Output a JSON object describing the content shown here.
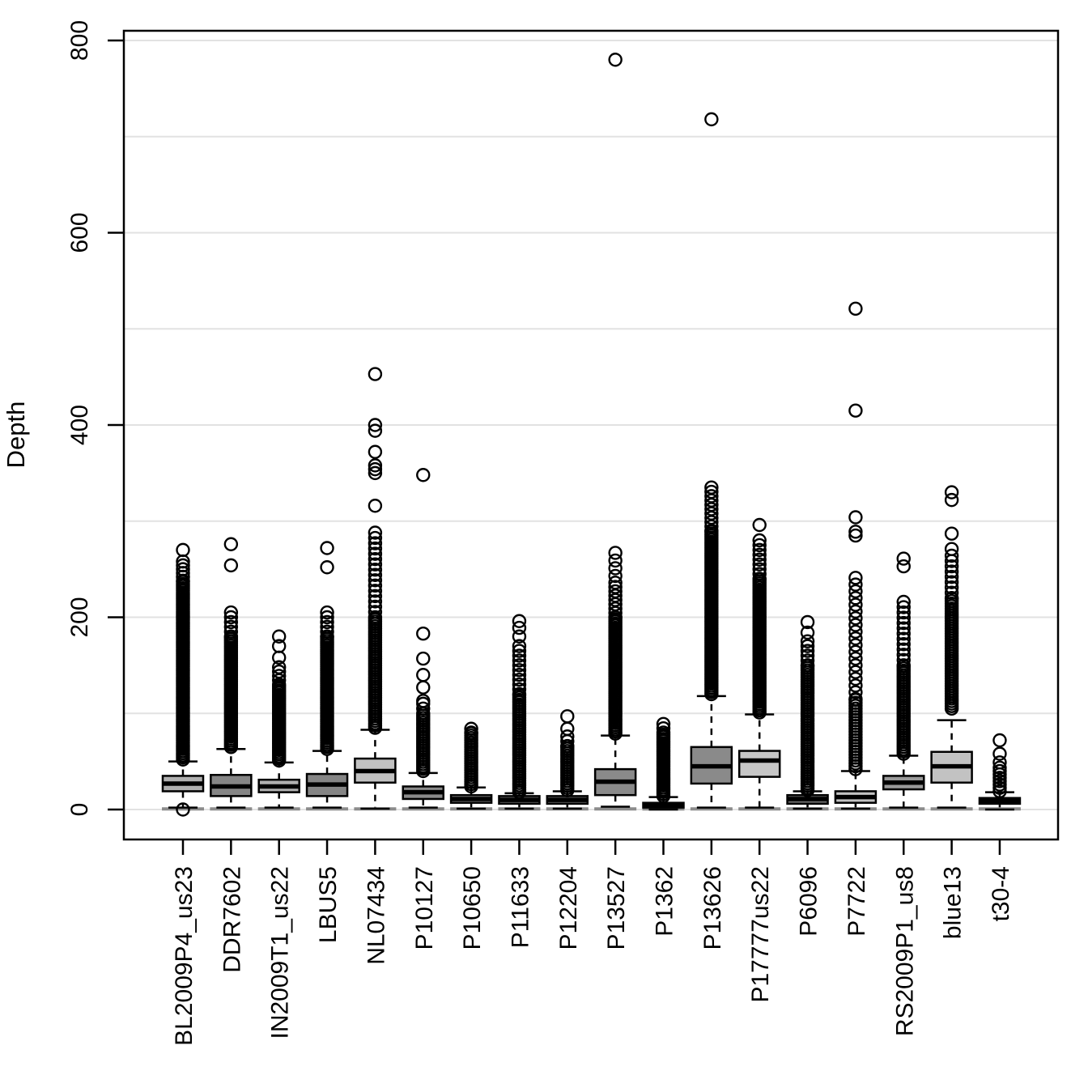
{
  "figure": {
    "ylabel": "Depth",
    "background": "#ffffff"
  },
  "colors": {
    "background": "#ffffff",
    "axis": "#000000",
    "grid": "#e2e2e2",
    "box_stroke": "#000000",
    "median": "#000000",
    "outlier_stroke": "#000000",
    "lower_staple_gray": "#8c8c8c"
  },
  "chart_data": {
    "type": "boxplot",
    "title": "",
    "xlabel": "",
    "ylabel": "Depth",
    "ylim": [
      0,
      800
    ],
    "yticks": [
      0,
      200,
      400,
      600,
      800
    ],
    "grid": "horizontal, every 100",
    "legend": "none",
    "categories": [
      "BL2009P4_us23",
      "DDR7602",
      "IN2009T1_us22",
      "LBUS5",
      "NL07434",
      "P10127",
      "P10650",
      "P11633",
      "P12204",
      "P13527",
      "P1362",
      "P13626",
      "P17777us22",
      "P6096",
      "P7722",
      "RS2009P1_us8",
      "blue13",
      "t30-4"
    ],
    "series": [
      {
        "name": "BL2009P4_us23",
        "q1": 19,
        "median": 27,
        "q3": 35,
        "whisker_low": 2,
        "whisker_high": 50,
        "fill": "#b0b0b0",
        "dense": [
          [
            52,
            238,
            2.2
          ],
          [
            238,
            259,
            4
          ]
        ],
        "outliers": [
          0,
          270
        ]
      },
      {
        "name": "DDR7602",
        "q1": 14,
        "median": 24,
        "q3": 36,
        "whisker_low": 2,
        "whisker_high": 63,
        "fill": "#858585",
        "dense": [
          [
            65,
            180,
            2.2
          ],
          [
            180,
            208,
            5
          ]
        ],
        "outliers": [
          254,
          276
        ]
      },
      {
        "name": "IN2009T1_us22",
        "q1": 18,
        "median": 24,
        "q3": 31,
        "whisker_low": 2,
        "whisker_high": 49,
        "fill": "#b0b0b0",
        "dense": [
          [
            51,
            130,
            2.2
          ],
          [
            130,
            148,
            4.5
          ]
        ],
        "outliers": [
          158,
          170,
          180
        ]
      },
      {
        "name": "LBUS5",
        "q1": 14,
        "median": 26,
        "q3": 37,
        "whisker_low": 2,
        "whisker_high": 61,
        "fill": "#858585",
        "dense": [
          [
            63,
            180,
            2.2
          ],
          [
            180,
            208,
            5
          ]
        ],
        "outliers": [
          252,
          272
        ]
      },
      {
        "name": "NL07434",
        "q1": 28,
        "median": 40,
        "q3": 53,
        "whisker_low": 1,
        "whisker_high": 83,
        "fill": "#c2c2c2",
        "dense": [
          [
            85,
            200,
            2.4
          ],
          [
            200,
            288,
            5.5
          ]
        ],
        "outliers": [
          316,
          350,
          354,
          358,
          372,
          394,
          400,
          453
        ]
      },
      {
        "name": "P10127",
        "q1": 11,
        "median": 18,
        "q3": 24,
        "whisker_low": 2,
        "whisker_high": 38,
        "fill": "#8a8a8a",
        "dense": [
          [
            40,
            100,
            2.4
          ],
          [
            100,
            110,
            5
          ]
        ],
        "outliers": [
          113,
          127,
          140,
          157,
          183,
          348
        ]
      },
      {
        "name": "P10650",
        "q1": 7,
        "median": 11,
        "q3": 15,
        "whisker_low": 1,
        "whisker_high": 23,
        "fill": "#919191",
        "dense": [
          [
            24,
            80,
            2.4
          ],
          [
            80,
            87,
            4
          ]
        ],
        "outliers": []
      },
      {
        "name": "P11633",
        "q1": 6,
        "median": 10,
        "q3": 14,
        "whisker_low": 1,
        "whisker_high": 17,
        "fill": "#6e6e6e",
        "dense": [
          [
            18,
            120,
            2.4
          ],
          [
            120,
            172,
            5
          ]
        ],
        "outliers": [
          180,
          189,
          196
        ]
      },
      {
        "name": "P12204",
        "q1": 6,
        "median": 10,
        "q3": 14,
        "whisker_low": 1,
        "whisker_high": 19,
        "fill": "#6e6e6e",
        "dense": [
          [
            20,
            66,
            2.4
          ],
          [
            66,
            76,
            5
          ]
        ],
        "outliers": [
          84,
          97
        ]
      },
      {
        "name": "P13527",
        "q1": 15,
        "median": 29,
        "q3": 42,
        "whisker_low": 3,
        "whisker_high": 77,
        "fill": "#8a8a8a",
        "dense": [
          [
            79,
            200,
            2.2
          ],
          [
            200,
            236,
            4.5
          ]
        ],
        "outliers": [
          243,
          251,
          259,
          267,
          780
        ]
      },
      {
        "name": "P1362",
        "q1": 2,
        "median": 5,
        "q3": 7,
        "whisker_low": 0,
        "whisker_high": 13,
        "fill": "#4a4a4a",
        "dense": [
          [
            14,
            80,
            2.2
          ],
          [
            80,
            90,
            4.5
          ]
        ],
        "outliers": []
      },
      {
        "name": "P13626",
        "q1": 27,
        "median": 45,
        "q3": 65,
        "whisker_low": 2,
        "whisker_high": 118,
        "fill": "#8a8a8a",
        "dense": [
          [
            120,
            290,
            2.2
          ],
          [
            290,
            338,
            4.5
          ]
        ],
        "outliers": [
          718
        ]
      },
      {
        "name": "P17777us22",
        "q1": 34,
        "median": 51,
        "q3": 61,
        "whisker_low": 2,
        "whisker_high": 99,
        "fill": "#c6c6c6",
        "dense": [
          [
            101,
            240,
            2.2
          ],
          [
            240,
            280,
            5
          ]
        ],
        "outliers": [
          296
        ]
      },
      {
        "name": "P6096",
        "q1": 6,
        "median": 11,
        "q3": 15,
        "whisker_low": 1,
        "whisker_high": 19,
        "fill": "#6e6e6e",
        "dense": [
          [
            20,
            150,
            2.4
          ],
          [
            150,
            178,
            5
          ]
        ],
        "outliers": [
          184,
          195
        ]
      },
      {
        "name": "P7722",
        "q1": 7,
        "median": 13,
        "q3": 19,
        "whisker_low": 1,
        "whisker_high": 40,
        "fill": "#c2c2c2",
        "dense": [
          [
            42,
            115,
            3
          ],
          [
            115,
            247,
            7
          ]
        ],
        "outliers": [
          285,
          289,
          304,
          415,
          521
        ]
      },
      {
        "name": "RS2009P1_us8",
        "q1": 21,
        "median": 28,
        "q3": 35,
        "whisker_low": 2,
        "whisker_high": 56,
        "fill": "#999999",
        "dense": [
          [
            58,
            150,
            2.4
          ],
          [
            150,
            221,
            5.5
          ]
        ],
        "outliers": [
          253,
          261
        ]
      },
      {
        "name": "blue13",
        "q1": 28,
        "median": 45,
        "q3": 60,
        "whisker_low": 2,
        "whisker_high": 93,
        "fill": "#c2c2c2",
        "dense": [
          [
            105,
            220,
            2.6
          ],
          [
            220,
            265,
            5.5
          ]
        ],
        "outliers": [
          271,
          287,
          322,
          330
        ]
      },
      {
        "name": "t30-4",
        "q1": 6,
        "median": 9,
        "q3": 12,
        "whisker_low": 0,
        "whisker_high": 18,
        "fill": "#4a4a4a",
        "dense": [
          [
            19,
            44,
            3.5
          ]
        ],
        "outliers": [
          49,
          58,
          72
        ]
      }
    ]
  }
}
